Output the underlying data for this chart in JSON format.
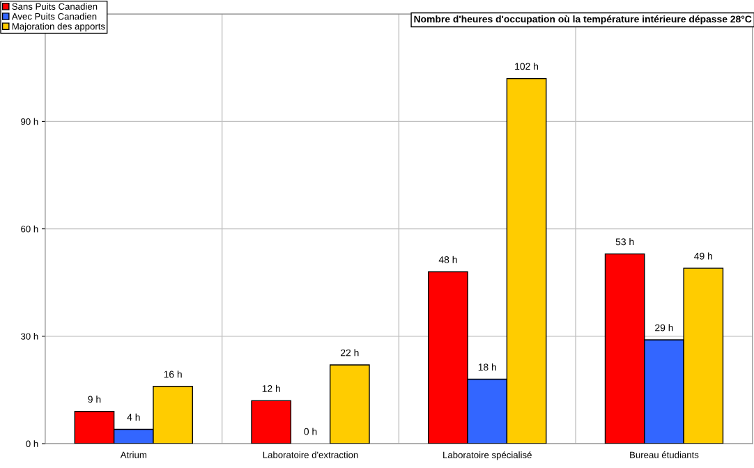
{
  "chart_data": {
    "type": "bar",
    "title": "Nombre d'heures d'occupation où la température intérieure dépasse 28°C",
    "categories": [
      "Atrium",
      "Laboratoire d'extraction",
      "Laboratoire spécialisé",
      "Bureau étudiants"
    ],
    "series": [
      {
        "name": "Sans Puits Canadien",
        "color": "#ff0000",
        "values": [
          9,
          12,
          48,
          53
        ],
        "value_labels": [
          "9 h",
          "12 h",
          "48 h",
          "53 h"
        ]
      },
      {
        "name": "Avec Puits Canadien",
        "color": "#3366ff",
        "values": [
          4,
          0,
          18,
          29
        ],
        "value_labels": [
          "4 h",
          "0 h",
          "18 h",
          "29 h"
        ]
      },
      {
        "name": "Majoration des apports",
        "color": "#ffcc00",
        "values": [
          16,
          22,
          102,
          49
        ],
        "value_labels": [
          "16 h",
          "22 h",
          "102 h",
          "49 h"
        ]
      }
    ],
    "ylim": [
      0,
      120
    ],
    "yticks": [
      {
        "value": 0,
        "label": "0 h"
      },
      {
        "value": 30,
        "label": "30 h"
      },
      {
        "value": 60,
        "label": "60 h"
      },
      {
        "value": 90,
        "label": "90 h"
      }
    ],
    "grid": true,
    "legend": "top left"
  }
}
